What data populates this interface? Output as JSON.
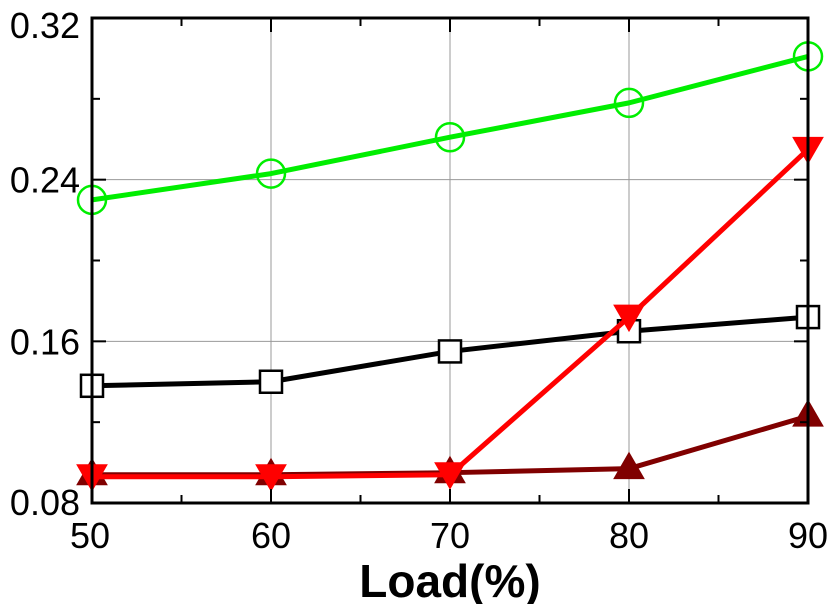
{
  "chart_data": {
    "type": "line",
    "title": "",
    "xlabel": "Load(%)",
    "ylabel": "",
    "x": [
      50,
      60,
      70,
      80,
      90
    ],
    "xlim": [
      50,
      90
    ],
    "ylim": [
      0.08,
      0.32
    ],
    "x_ticks": [
      "50",
      "60",
      "70",
      "80",
      "90"
    ],
    "y_ticks": [
      "0.08",
      "0.16",
      "0.24",
      "0.32"
    ],
    "grid": true,
    "legend": "none",
    "series": [
      {
        "values": [
          0.138,
          0.14,
          0.155,
          0.165,
          0.172
        ],
        "color": "#000000",
        "marker": "square"
      },
      {
        "values": [
          0.23,
          0.243,
          0.261,
          0.278,
          0.301
        ],
        "color": "#00ee00",
        "marker": "circle"
      },
      {
        "values": [
          0.094,
          0.094,
          0.095,
          0.097,
          0.123
        ],
        "color": "#800000",
        "marker": "triangle-up"
      },
      {
        "values": [
          0.093,
          0.093,
          0.094,
          0.172,
          0.255
        ],
        "color": "#ff0000",
        "marker": "triangle-down"
      }
    ]
  }
}
